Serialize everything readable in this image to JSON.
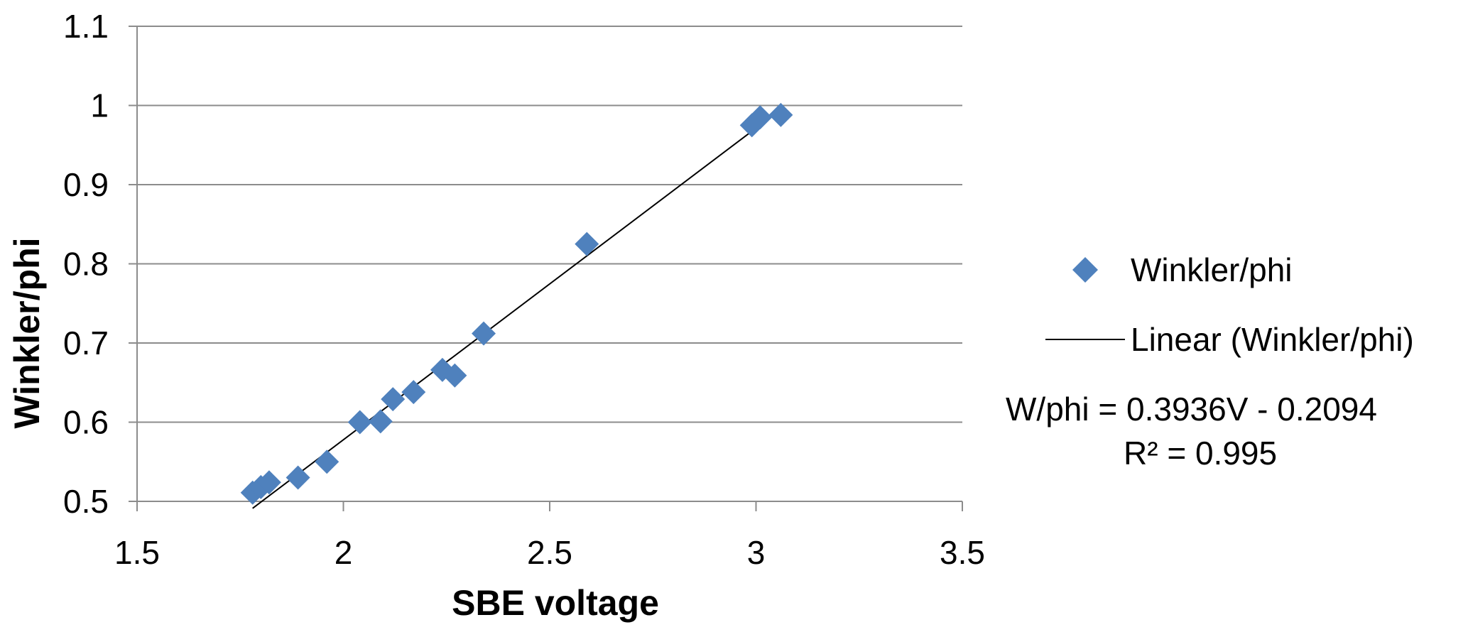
{
  "chart_data": {
    "type": "scatter",
    "xlabel": "SBE voltage",
    "ylabel": "Winkler/phi",
    "xlim": [
      1.5,
      3.5
    ],
    "ylim": [
      0.5,
      1.1
    ],
    "x_ticks": [
      "1.5",
      "2",
      "2.5",
      "3",
      "3.5"
    ],
    "y_ticks": [
      "0.5",
      "0.6",
      "0.7",
      "0.8",
      "0.9",
      "1",
      "1.1"
    ],
    "x_tick_values": [
      1.5,
      2,
      2.5,
      3,
      3.5
    ],
    "y_tick_values": [
      0.5,
      0.6,
      0.7,
      0.8,
      0.9,
      1.0,
      1.1
    ],
    "grid": "horizontal",
    "legend_position": "right",
    "marker_color": "#4f81bd",
    "trendline_color": "#000000",
    "series": [
      {
        "name": "Winkler/phi",
        "points": [
          {
            "x": 1.78,
            "y": 0.511
          },
          {
            "x": 1.8,
            "y": 0.518
          },
          {
            "x": 1.82,
            "y": 0.524
          },
          {
            "x": 1.89,
            "y": 0.53
          },
          {
            "x": 1.96,
            "y": 0.55
          },
          {
            "x": 2.04,
            "y": 0.6
          },
          {
            "x": 2.09,
            "y": 0.601
          },
          {
            "x": 2.12,
            "y": 0.629
          },
          {
            "x": 2.17,
            "y": 0.638
          },
          {
            "x": 2.24,
            "y": 0.666
          },
          {
            "x": 2.27,
            "y": 0.659
          },
          {
            "x": 2.34,
            "y": 0.712
          },
          {
            "x": 2.59,
            "y": 0.825
          },
          {
            "x": 2.99,
            "y": 0.975
          },
          {
            "x": 3.01,
            "y": 0.985
          },
          {
            "x": 3.06,
            "y": 0.988
          }
        ]
      }
    ],
    "trendline": {
      "name": "Linear (Winkler/phi)",
      "slope": 0.3936,
      "intercept": -0.2094,
      "x_range": [
        1.78,
        3.06
      ]
    },
    "equation": "W/phi = 0.3936V  - 0.2094",
    "r_squared": "R² = 0.995"
  }
}
